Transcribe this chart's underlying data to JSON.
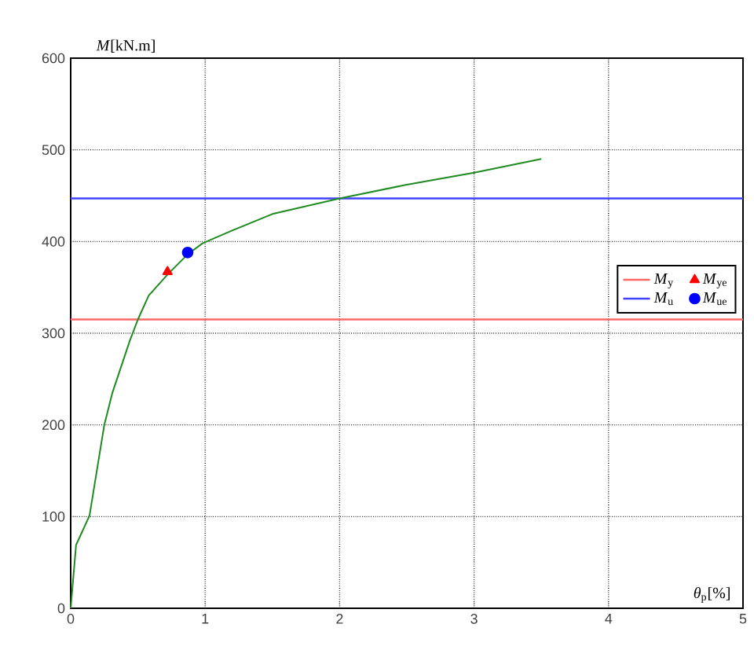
{
  "chart_data": {
    "type": "line",
    "xlabel": "*θ*$_{p}$[%]",
    "ylabel": "*M*[kN.m]",
    "xlim": [
      0,
      5
    ],
    "ylim": [
      0,
      600
    ],
    "xticks": [
      0,
      1,
      2,
      3,
      4,
      5
    ],
    "yticks": [
      0,
      100,
      200,
      300,
      400,
      500,
      600
    ],
    "grid": true,
    "legend": "right",
    "series": [
      {
        "color": "#1f8a1f",
        "marker": "none",
        "x": [
          0,
          0.04,
          0.14,
          0.25,
          0.31,
          0.44,
          0.5,
          0.58,
          0.72,
          0.87,
          0.98,
          1.2,
          1.5,
          2.0,
          2.5,
          3.0,
          3.5
        ],
        "values": [
          0,
          69,
          101,
          200,
          235,
          292,
          315,
          341,
          364,
          386,
          398,
          412,
          430,
          447,
          462,
          475,
          490
        ]
      },
      {
        "type": "scatter",
        "name": "*M*$_{ye}$",
        "color": "#ff0000",
        "marker": "triangle",
        "x": [
          0.72
        ],
        "values": [
          367
        ]
      },
      {
        "type": "scatter",
        "name": "*M*$_{ue}$",
        "color": "#0000ff",
        "marker": "circle",
        "x": [
          0.87
        ],
        "values": [
          388
        ]
      }
    ],
    "ref_lines": [
      {
        "axis": "y",
        "value": 315,
        "label": "*M*$_{y}$",
        "color": "#ff6666"
      },
      {
        "axis": "y",
        "value": 447,
        "label": "*M*$_{u}$",
        "color": "#4040ff"
      }
    ]
  }
}
